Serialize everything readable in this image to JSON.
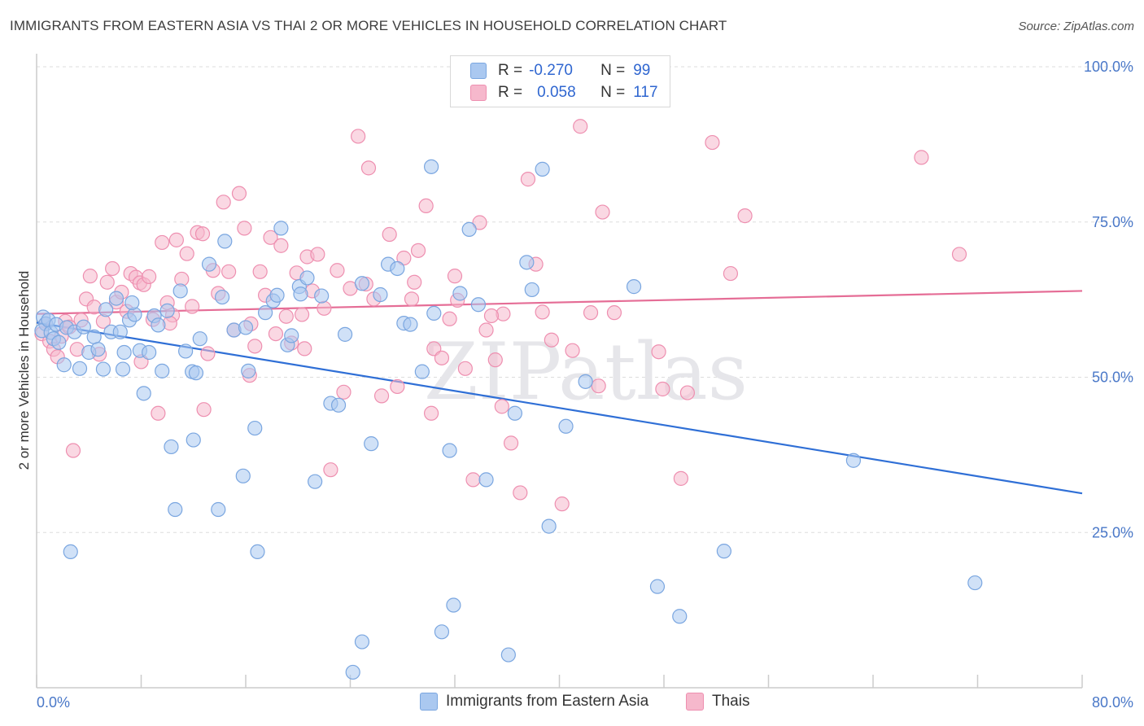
{
  "title": "IMMIGRANTS FROM EASTERN ASIA VS THAI 2 OR MORE VEHICLES IN HOUSEHOLD CORRELATION CHART",
  "source": "Source: ZipAtlas.com",
  "watermark": "ZIPatlas",
  "legend": {
    "rows": [
      {
        "r_label": "R =",
        "r_value": "-0.270",
        "n_label": "N =",
        "n_value": "99"
      },
      {
        "r_label": "R =",
        "r_value": "0.058",
        "n_label": "N =",
        "n_value": "117"
      }
    ]
  },
  "bottom_legend": [
    "Immigrants from Eastern Asia",
    "Thais"
  ],
  "colors": {
    "blue_fill": "#aac8f0",
    "blue_stroke": "#7aa6e0",
    "blue_line": "#2f6fd6",
    "pink_fill": "#f6b8cc",
    "pink_stroke": "#ee8fb0",
    "pink_line": "#e56d96",
    "tick_text": "#4a78c8",
    "grid": "#dddddd"
  },
  "chart_data": {
    "type": "scatter",
    "title": "IMMIGRANTS FROM EASTERN ASIA VS THAI 2 OR MORE VEHICLES IN HOUSEHOLD CORRELATION CHART",
    "xlabel": "",
    "ylabel": "2 or more Vehicles in Household",
    "xlim": [
      0,
      80
    ],
    "ylim": [
      0,
      100
    ],
    "x_tick_labels": [
      "0.0%",
      "80.0%"
    ],
    "y_ticks": [
      25,
      50,
      75,
      100
    ],
    "y_tick_labels": [
      "25.0%",
      "50.0%",
      "75.0%",
      "100.0%"
    ],
    "grid": true,
    "legend_position": "top-center",
    "series": [
      {
        "name": "Immigrants from Eastern Asia",
        "trend": {
          "x": [
            0,
            80
          ],
          "y": [
            58.8,
            31.3
          ]
        },
        "points": [
          [
            0.5,
            59.7
          ],
          [
            0.7,
            58.6
          ],
          [
            0.4,
            57.5
          ],
          [
            0.9,
            59.2
          ],
          [
            1.1,
            57.2
          ],
          [
            1.3,
            56.2
          ],
          [
            1.5,
            58.5
          ],
          [
            1.7,
            55.6
          ],
          [
            2.1,
            52.0
          ],
          [
            2.3,
            58.0
          ],
          [
            2.9,
            57.3
          ],
          [
            3.3,
            51.4
          ],
          [
            3.6,
            58.1
          ],
          [
            4.0,
            54.0
          ],
          [
            4.4,
            56.5
          ],
          [
            4.7,
            54.5
          ],
          [
            5.1,
            51.3
          ],
          [
            5.3,
            60.9
          ],
          [
            5.7,
            57.3
          ],
          [
            6.1,
            62.7
          ],
          [
            6.4,
            57.3
          ],
          [
            6.7,
            54.0
          ],
          [
            7.1,
            59.2
          ],
          [
            7.5,
            60.1
          ],
          [
            7.9,
            54.3
          ],
          [
            8.2,
            47.4
          ],
          [
            8.6,
            54.0
          ],
          [
            9.0,
            59.9
          ],
          [
            9.3,
            58.4
          ],
          [
            9.6,
            51.0
          ],
          [
            10.0,
            60.7
          ],
          [
            10.3,
            38.8
          ],
          [
            10.6,
            28.7
          ],
          [
            11.0,
            63.9
          ],
          [
            11.4,
            54.2
          ],
          [
            11.9,
            50.9
          ],
          [
            12.2,
            50.7
          ],
          [
            12.5,
            56.2
          ],
          [
            13.2,
            68.2
          ],
          [
            13.9,
            28.7
          ],
          [
            14.2,
            62.9
          ],
          [
            14.4,
            71.9
          ],
          [
            15.1,
            57.6
          ],
          [
            15.8,
            34.1
          ],
          [
            16.2,
            51.0
          ],
          [
            16.7,
            41.8
          ],
          [
            16.9,
            21.9
          ],
          [
            17.5,
            60.4
          ],
          [
            18.1,
            62.3
          ],
          [
            18.7,
            74.0
          ],
          [
            19.2,
            55.2
          ],
          [
            19.5,
            56.7
          ],
          [
            20.1,
            64.6
          ],
          [
            20.7,
            66.0
          ],
          [
            21.3,
            33.2
          ],
          [
            21.8,
            63.1
          ],
          [
            22.5,
            45.8
          ],
          [
            23.1,
            45.5
          ],
          [
            23.6,
            56.9
          ],
          [
            24.2,
            2.5
          ],
          [
            24.9,
            7.4
          ],
          [
            25.6,
            39.3
          ],
          [
            26.3,
            63.3
          ],
          [
            26.9,
            68.2
          ],
          [
            27.6,
            67.5
          ],
          [
            28.1,
            58.7
          ],
          [
            28.6,
            58.5
          ],
          [
            29.5,
            50.9
          ],
          [
            30.2,
            83.9
          ],
          [
            31.0,
            9.0
          ],
          [
            31.6,
            38.2
          ],
          [
            31.9,
            13.3
          ],
          [
            32.4,
            63.5
          ],
          [
            33.1,
            73.8
          ],
          [
            33.8,
            61.7
          ],
          [
            34.4,
            33.5
          ],
          [
            36.1,
            5.3
          ],
          [
            36.6,
            44.2
          ],
          [
            37.5,
            68.5
          ],
          [
            37.9,
            64.1
          ],
          [
            38.7,
            83.5
          ],
          [
            39.2,
            26.0
          ],
          [
            40.5,
            42.1
          ],
          [
            42.0,
            49.3
          ],
          [
            45.7,
            64.6
          ],
          [
            47.5,
            16.3
          ],
          [
            49.2,
            11.5
          ],
          [
            52.6,
            22.0
          ],
          [
            62.5,
            36.6
          ],
          [
            71.8,
            16.9
          ],
          [
            2.6,
            21.9
          ],
          [
            6.6,
            51.3
          ],
          [
            16.0,
            58.0
          ],
          [
            12.0,
            39.9
          ],
          [
            20.2,
            63.4
          ],
          [
            18.4,
            63.2
          ],
          [
            30.4,
            60.3
          ],
          [
            24.9,
            65.1
          ],
          [
            7.3,
            62.0
          ]
        ]
      },
      {
        "name": "Thais",
        "trend": {
          "x": [
            0,
            80
          ],
          "y": [
            60.2,
            63.9
          ]
        },
        "points": [
          [
            0.4,
            57.0
          ],
          [
            0.7,
            58.6
          ],
          [
            1.0,
            55.8
          ],
          [
            1.3,
            54.5
          ],
          [
            1.6,
            53.3
          ],
          [
            1.9,
            56.6
          ],
          [
            2.2,
            59.0
          ],
          [
            2.5,
            58.1
          ],
          [
            2.8,
            38.2
          ],
          [
            3.1,
            54.5
          ],
          [
            3.4,
            59.2
          ],
          [
            3.8,
            62.6
          ],
          [
            4.1,
            66.3
          ],
          [
            4.4,
            61.3
          ],
          [
            4.8,
            53.7
          ],
          [
            5.1,
            59.0
          ],
          [
            5.4,
            65.3
          ],
          [
            5.8,
            67.5
          ],
          [
            6.1,
            62.1
          ],
          [
            6.5,
            63.7
          ],
          [
            6.9,
            60.6
          ],
          [
            7.2,
            66.7
          ],
          [
            7.6,
            66.1
          ],
          [
            7.9,
            65.2
          ],
          [
            8.2,
            64.9
          ],
          [
            8.6,
            66.2
          ],
          [
            8.9,
            59.3
          ],
          [
            9.3,
            44.2
          ],
          [
            9.6,
            71.7
          ],
          [
            10.0,
            62.0
          ],
          [
            10.4,
            60.0
          ],
          [
            10.7,
            72.1
          ],
          [
            11.1,
            65.8
          ],
          [
            11.5,
            69.9
          ],
          [
            11.9,
            61.4
          ],
          [
            12.3,
            73.3
          ],
          [
            12.7,
            73.1
          ],
          [
            13.1,
            53.8
          ],
          [
            13.5,
            67.2
          ],
          [
            13.9,
            63.5
          ],
          [
            14.3,
            78.2
          ],
          [
            14.7,
            67.0
          ],
          [
            15.1,
            57.6
          ],
          [
            15.5,
            79.6
          ],
          [
            15.9,
            74.0
          ],
          [
            16.3,
            50.3
          ],
          [
            16.7,
            55.0
          ],
          [
            17.1,
            67.0
          ],
          [
            17.5,
            63.2
          ],
          [
            17.9,
            72.5
          ],
          [
            18.3,
            57.0
          ],
          [
            18.7,
            71.2
          ],
          [
            19.1,
            59.8
          ],
          [
            19.5,
            55.5
          ],
          [
            19.9,
            66.8
          ],
          [
            20.3,
            60.1
          ],
          [
            20.7,
            69.4
          ],
          [
            21.1,
            63.9
          ],
          [
            21.5,
            69.8
          ],
          [
            22.0,
            61.1
          ],
          [
            22.5,
            35.1
          ],
          [
            23.0,
            67.2
          ],
          [
            23.5,
            47.6
          ],
          [
            24.0,
            64.3
          ],
          [
            24.6,
            88.8
          ],
          [
            25.2,
            65.0
          ],
          [
            25.8,
            62.6
          ],
          [
            26.4,
            47.0
          ],
          [
            27.0,
            73.0
          ],
          [
            27.6,
            48.5
          ],
          [
            28.1,
            69.2
          ],
          [
            28.7,
            62.6
          ],
          [
            29.2,
            70.4
          ],
          [
            29.8,
            77.6
          ],
          [
            30.4,
            54.6
          ],
          [
            31.0,
            53.1
          ],
          [
            31.6,
            59.4
          ],
          [
            32.2,
            62.4
          ],
          [
            32.8,
            51.4
          ],
          [
            33.4,
            33.5
          ],
          [
            33.9,
            74.9
          ],
          [
            34.4,
            57.6
          ],
          [
            35.1,
            52.8
          ],
          [
            35.7,
            60.2
          ],
          [
            36.3,
            39.4
          ],
          [
            37.0,
            31.4
          ],
          [
            37.6,
            81.9
          ],
          [
            38.2,
            68.2
          ],
          [
            38.7,
            60.5
          ],
          [
            39.4,
            56.0
          ],
          [
            40.2,
            29.6
          ],
          [
            41.0,
            54.3
          ],
          [
            41.6,
            90.4
          ],
          [
            42.4,
            60.4
          ],
          [
            43.3,
            76.6
          ],
          [
            44.2,
            60.4
          ],
          [
            47.6,
            54.1
          ],
          [
            47.9,
            48.1
          ],
          [
            49.3,
            33.7
          ],
          [
            51.7,
            87.8
          ],
          [
            53.1,
            66.7
          ],
          [
            54.2,
            76.0
          ],
          [
            67.7,
            85.4
          ],
          [
            70.6,
            69.8
          ],
          [
            8.0,
            52.5
          ],
          [
            10.2,
            58.7
          ],
          [
            12.8,
            44.8
          ],
          [
            16.4,
            58.6
          ],
          [
            20.5,
            54.6
          ],
          [
            25.4,
            83.7
          ],
          [
            28.9,
            65.3
          ],
          [
            30.2,
            44.2
          ],
          [
            32.0,
            66.3
          ],
          [
            34.8,
            59.9
          ],
          [
            35.6,
            45.3
          ],
          [
            43.0,
            48.6
          ],
          [
            49.8,
            47.5
          ]
        ]
      }
    ]
  }
}
